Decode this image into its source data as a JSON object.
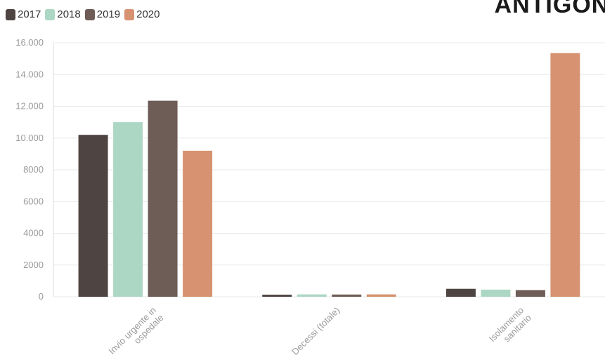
{
  "brand": "ANTIGONE",
  "chart_data": {
    "type": "bar",
    "categories": [
      [
        "Invio urgente in",
        "ospedale"
      ],
      [
        "Decessi (totale)"
      ],
      [
        "Isolamento",
        "sanitario"
      ]
    ],
    "series": [
      {
        "name": "2017",
        "color": "#4e4542",
        "values": [
          10200,
          130,
          500
        ]
      },
      {
        "name": "2018",
        "color": "#acd7c4",
        "values": [
          11000,
          150,
          450
        ]
      },
      {
        "name": "2019",
        "color": "#6e5c56",
        "values": [
          12350,
          140,
          420
        ]
      },
      {
        "name": "2020",
        "color": "#d79271",
        "values": [
          9200,
          150,
          15350
        ]
      }
    ],
    "yticks": [
      {
        "value": 0,
        "label": "0"
      },
      {
        "value": 2000,
        "label": "2000"
      },
      {
        "value": 4000,
        "label": "4000"
      },
      {
        "value": 6000,
        "label": "6000"
      },
      {
        "value": 8000,
        "label": "8000"
      },
      {
        "value": 10000,
        "label": "10.000"
      },
      {
        "value": 12000,
        "label": "12.000"
      },
      {
        "value": 14000,
        "label": "14.000"
      },
      {
        "value": 16000,
        "label": "16.000"
      }
    ],
    "ylim": [
      0,
      16000
    ],
    "grid": true,
    "legend_position": "top-left"
  }
}
